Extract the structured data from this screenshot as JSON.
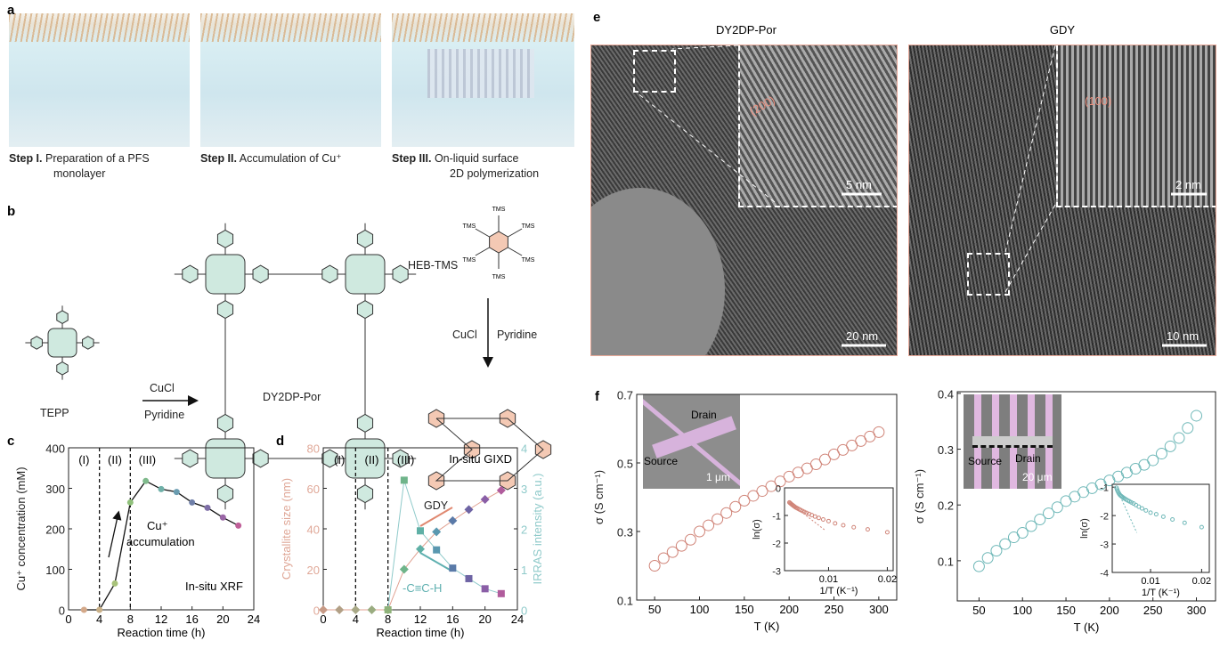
{
  "panel_labels": {
    "a": "a",
    "b": "b",
    "c": "c",
    "d": "d",
    "e": "e",
    "f": "f"
  },
  "panel_a": {
    "steps": [
      {
        "bold": "Step I.",
        "text1": "Preparation of a PFS",
        "text2": "monolayer"
      },
      {
        "bold": "Step II.",
        "text1": "Accumulation of Cu⁺",
        "text2": ""
      },
      {
        "bold": "Step III.",
        "text1": "On-liquid surface",
        "text2": "2D polymerization"
      }
    ]
  },
  "panel_b": {
    "tepp": "TEPP",
    "cucl_left": "CuCl",
    "pyridine_left": "Pyridine",
    "dy2dp": "DY2DP-Por",
    "heb": "HEB-TMS",
    "tms": "TMS",
    "cucl_right": "CuCl",
    "pyridine_right": "Pyridine",
    "gdy": "GDY",
    "colors": {
      "porphyrin": "#cfe9df",
      "benzene": "#f4c9b4"
    }
  },
  "panel_e": {
    "title_left": "DY2DP-Por",
    "title_right": "GDY",
    "left_inset_label": "(200)",
    "left_inset_scale": "5 nm",
    "left_scale": "20 nm",
    "right_inset_label": "(100)",
    "right_inset_scale": "2 nm",
    "right_scale": "10 nm"
  },
  "chart_data": [
    {
      "id": "c",
      "type": "line",
      "xlabel": "Reaction time (h)",
      "ylabel": "Cu⁺ concentration (mM)",
      "xlim": [
        0,
        24
      ],
      "ylim": [
        0,
        400
      ],
      "xticks": [
        0,
        4,
        8,
        12,
        16,
        20,
        24
      ],
      "yticks": [
        0,
        100,
        200,
        300,
        400
      ],
      "x": [
        2,
        4,
        6,
        8,
        10,
        12,
        14,
        16,
        18,
        20,
        22
      ],
      "y": [
        0,
        0,
        65,
        265,
        318,
        298,
        291,
        265,
        252,
        228,
        208
      ],
      "marker_colors": [
        "#d4a98a",
        "#c9b088",
        "#a8c27a",
        "#8fc07a",
        "#7fba8c",
        "#6fb0a8",
        "#6a9cb0",
        "#6f7fa8",
        "#7e6ea6",
        "#9a66a6",
        "#c06099"
      ],
      "regions": [
        "(I)",
        "(II)",
        "(III)"
      ],
      "region_bounds": [
        4,
        8
      ],
      "annotations": {
        "arrow_text1": "Cu⁺",
        "arrow_text2": "accumulation",
        "method": "In-situ XRF"
      }
    },
    {
      "id": "d",
      "type": "line",
      "xlabel": "Reaction time (h)",
      "ylabel": "Crystallite size (nm)",
      "ylabel_right": "IRRAS intensity (a.u.)",
      "xlim": [
        0,
        24
      ],
      "ylim": [
        0,
        80
      ],
      "ylim_right": [
        0,
        4
      ],
      "xticks": [
        0,
        4,
        8,
        12,
        16,
        20,
        24
      ],
      "yticks": [
        0,
        20,
        40,
        60,
        80
      ],
      "yticks_right": [
        0,
        1,
        2,
        3,
        4
      ],
      "series": [
        {
          "axis": "left",
          "marker": "diamond",
          "x": [
            0,
            2,
            4,
            6,
            8,
            10,
            12,
            14,
            16,
            18,
            20,
            22
          ],
          "y": [
            0,
            0,
            0,
            0,
            0,
            20,
            30,
            38.5,
            44,
            49.5,
            54.5,
            59
          ],
          "line_color": "#e0a090"
        },
        {
          "axis": "right",
          "marker": "square",
          "x": [
            8,
            10,
            12,
            14,
            16,
            18,
            20,
            22
          ],
          "y": [
            0,
            3.2,
            1.95,
            1.48,
            1.03,
            0.77,
            0.52,
            0.4
          ],
          "line_color": "#8fcaca"
        }
      ],
      "marker_colors": [
        "#c79a86",
        "#b2a086",
        "#a8a886",
        "#9aac80",
        "#8fb27a",
        "#6fb48a",
        "#5fb0a6",
        "#5a98b0",
        "#5a7aa8",
        "#6e64a4",
        "#8a5ea6",
        "#b05c9c"
      ],
      "regions": [
        "(I)",
        "(II)",
        "(III)"
      ],
      "region_bounds": [
        4,
        8
      ],
      "colors": {
        "left_axis": "#e0a898",
        "right_axis": "#8fcaca"
      },
      "annotations": {
        "method": "In-situ GIXD",
        "alkyne": "-C≡C-H"
      }
    },
    {
      "id": "f-left",
      "type": "scatter",
      "xlabel": "T (K)",
      "ylabel": "σ (S cm⁻¹)",
      "xlim": [
        30,
        320
      ],
      "ylim": [
        0.1,
        0.7
      ],
      "xticks": [
        50,
        100,
        150,
        200,
        250,
        300
      ],
      "yticks": [
        0.1,
        0.3,
        0.5,
        0.7
      ],
      "color": "#d08478",
      "x": [
        50,
        60,
        70,
        80,
        90,
        100,
        110,
        120,
        130,
        140,
        150,
        160,
        170,
        180,
        190,
        200,
        210,
        220,
        230,
        240,
        250,
        260,
        270,
        280,
        290,
        300
      ],
      "y": [
        0.2,
        0.222,
        0.24,
        0.258,
        0.276,
        0.3,
        0.318,
        0.336,
        0.354,
        0.372,
        0.39,
        0.404,
        0.418,
        0.432,
        0.446,
        0.46,
        0.472,
        0.484,
        0.496,
        0.51,
        0.525,
        0.538,
        0.551,
        0.564,
        0.577,
        0.59
      ],
      "inset": {
        "xlabel": "1/T (K⁻¹)",
        "ylabel": "ln(σ)",
        "xlim": [
          0.0025,
          0.021
        ],
        "ylim": [
          -3,
          0
        ],
        "xticks": [
          0.01,
          0.02
        ],
        "yticks": [
          0,
          -1,
          -2,
          -3
        ],
        "fit": [
          [
            0.0033,
            -0.53
          ],
          [
            0.0095,
            -1.55
          ]
        ]
      },
      "sem": {
        "drain": "Drain",
        "source": "Source",
        "scale": "1 μm"
      }
    },
    {
      "id": "f-right",
      "type": "scatter",
      "xlabel": "T (K)",
      "ylabel": "σ (S cm⁻¹)",
      "xlim": [
        25,
        322
      ],
      "ylim": [
        0.028,
        0.403
      ],
      "xticks": [
        50,
        100,
        150,
        200,
        250,
        300
      ],
      "yticks": [
        0.1,
        0.2,
        0.3,
        0.4
      ],
      "color": "#6fb8b8",
      "x": [
        50,
        60,
        70,
        80,
        90,
        100,
        110,
        120,
        130,
        140,
        150,
        160,
        170,
        180,
        190,
        200,
        210,
        220,
        230,
        240,
        250,
        260,
        270,
        280,
        290,
        300
      ],
      "y": [
        0.09,
        0.105,
        0.118,
        0.13,
        0.142,
        0.15,
        0.162,
        0.174,
        0.185,
        0.196,
        0.207,
        0.215,
        0.223,
        0.23,
        0.237,
        0.244,
        0.251,
        0.258,
        0.265,
        0.272,
        0.28,
        0.292,
        0.305,
        0.32,
        0.338,
        0.36
      ],
      "inset": {
        "xlabel": "1/T (K⁻¹)",
        "ylabel": "ln(σ)",
        "xlim": [
          0.0025,
          0.0215
        ],
        "ylim": [
          -4,
          -0.9
        ],
        "xticks": [
          0.01,
          0.02
        ],
        "yticks": [
          -1,
          -2,
          -3,
          -4
        ],
        "fit": [
          [
            0.0035,
            -1.1
          ],
          [
            0.0073,
            -2.6
          ]
        ]
      },
      "sem": {
        "drain": "Drain",
        "source": "Source",
        "scale": "20 μm"
      }
    }
  ]
}
